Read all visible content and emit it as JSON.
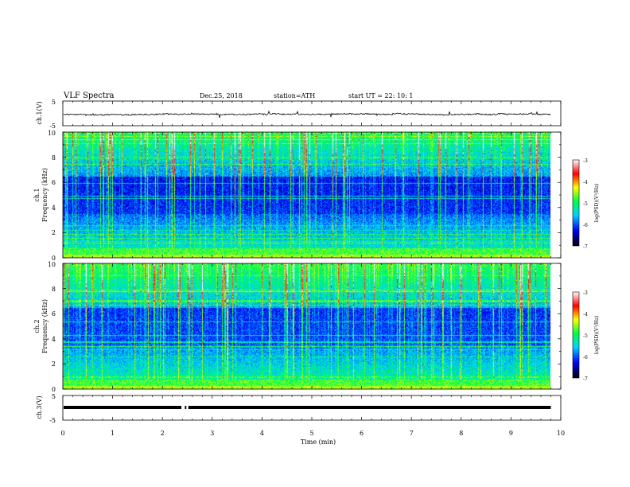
{
  "header": {
    "title": "VLF  Spectra",
    "date": "Dec.25, 2018",
    "station": "station=ATH",
    "start_ut": "start  UT  =    22: 10: 1"
  },
  "chart_data": [
    {
      "type": "line",
      "panel": "ch1-waveform",
      "ylabel": "ch.1(V)",
      "ylim": [
        -5,
        5
      ],
      "ytick_labels": [
        "5",
        "-5"
      ],
      "xlim": [
        0,
        10
      ],
      "trace": {
        "mean": 0.0,
        "visible_until": 9.8
      }
    },
    {
      "type": "heatmap",
      "panel": "ch1-spectrogram",
      "ylabel_channel": "ch.1",
      "ylabel": "Frequency  (kHz)",
      "ylim": [
        0,
        10
      ],
      "ytick_labels": [
        "0",
        "2",
        "4",
        "6",
        "8",
        "10"
      ],
      "xlim": [
        0,
        10
      ],
      "data_until": 9.8,
      "colorbar": {
        "label": "log(PSD)(V²/Hz)",
        "range": [
          -7,
          -3
        ],
        "tick_labels": [
          "-3",
          "-4",
          "-5",
          "-6",
          "-7"
        ],
        "colors": [
          "#000000",
          "#0000ff",
          "#00d4ff",
          "#00ff40",
          "#ffff00",
          "#ff0000",
          "#ffffff"
        ]
      }
    },
    {
      "type": "heatmap",
      "panel": "ch2-spectrogram",
      "ylabel_channel": "ch.2",
      "ylabel": "Frequency  (kHz)",
      "ylim": [
        0,
        10
      ],
      "ytick_labels": [
        "0",
        "2",
        "4",
        "6",
        "8",
        "10"
      ],
      "xlim": [
        0,
        10
      ],
      "data_until": 9.8,
      "colorbar": {
        "label": "log(PSD)(V²/Hz)",
        "range": [
          -7,
          -3
        ],
        "tick_labels": [
          "-3",
          "-4",
          "-5",
          "-6",
          "-7"
        ],
        "colors": [
          "#000000",
          "#0000ff",
          "#00d4ff",
          "#00ff40",
          "#ffff00",
          "#ff0000",
          "#ffffff"
        ]
      }
    },
    {
      "type": "line",
      "panel": "ch3-waveform",
      "ylabel": "ch.3(V)",
      "ylim": [
        -5,
        5
      ],
      "ytick_labels": [
        "5",
        "-5"
      ],
      "xlim": [
        0,
        10
      ],
      "xlabel": "Time  (min)",
      "xtick_labels": [
        "0",
        "1",
        "2",
        "3",
        "4",
        "5",
        "6",
        "7",
        "8",
        "9",
        "10"
      ],
      "trace": {
        "mean": 0.0,
        "visible_until": 9.8
      }
    }
  ]
}
